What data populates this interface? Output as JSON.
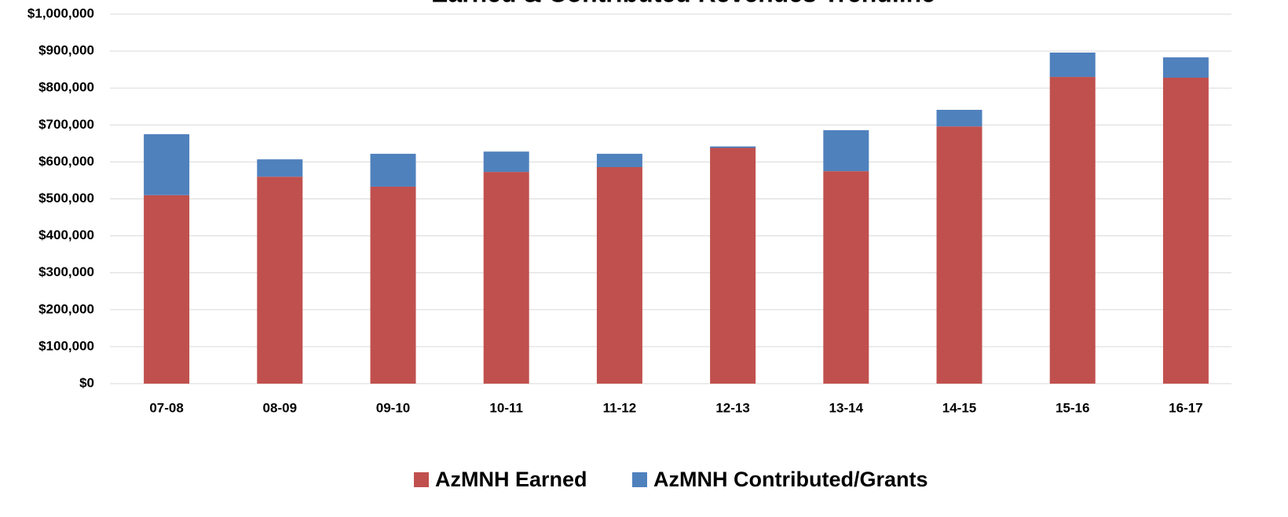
{
  "chart_data": {
    "type": "stacked_bar",
    "title": "Earned & Contributed Revenues Trendline",
    "categories": [
      "07-08",
      "08-09",
      "09-10",
      "10-11",
      "11-12",
      "12-13",
      "13-14",
      "14-15",
      "15-16",
      "16-17"
    ],
    "series": [
      {
        "name": "AzMNH Earned",
        "color": "#c0504d",
        "values": [
          510000,
          560000,
          533000,
          573000,
          586000,
          638000,
          575000,
          696000,
          830000,
          828000
        ]
      },
      {
        "name": "AzMNH Contributed/Grants",
        "color": "#4f81bd",
        "values": [
          165000,
          47000,
          89000,
          55000,
          36000,
          4000,
          111000,
          45000,
          66000,
          55000
        ]
      }
    ],
    "ylim": [
      0,
      1000000
    ],
    "yticks": [
      {
        "value": 0,
        "label": "$0"
      },
      {
        "value": 100000,
        "label": "$100,000"
      },
      {
        "value": 200000,
        "label": "$200,000"
      },
      {
        "value": 300000,
        "label": "$300,000"
      },
      {
        "value": 400000,
        "label": "$400,000"
      },
      {
        "value": 500000,
        "label": "$500,000"
      },
      {
        "value": 600000,
        "label": "$600,000"
      },
      {
        "value": 700000,
        "label": "$700,000"
      },
      {
        "value": 800000,
        "label": "$800,000"
      },
      {
        "value": 900000,
        "label": "$900,000"
      },
      {
        "value": 1000000,
        "label": "$1,000,000"
      }
    ],
    "grid": true,
    "legend": "bottom"
  }
}
